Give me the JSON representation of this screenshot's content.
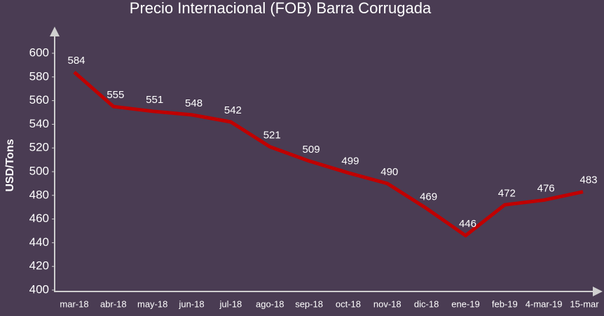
{
  "chart_data": {
    "type": "line",
    "title": "Precio Internacional (FOB) Barra Corrugada",
    "y_label": "USD/Tons",
    "categories": [
      "mar-18",
      "abr-18",
      "may-18",
      "jun-18",
      "jul-18",
      "ago-18",
      "sep-18",
      "oct-18",
      "nov-18",
      "dic-18",
      "ene-19",
      "feb-19",
      "4-mar-19",
      "15-mar"
    ],
    "series": [
      {
        "name": "Precio",
        "color": "#c00000",
        "values": [
          584,
          555,
          551,
          548,
          542,
          521,
          509,
          499,
          490,
          469,
          446,
          472,
          476,
          483
        ]
      }
    ],
    "ylim": [
      400,
      600
    ],
    "yticks": [
      400,
      420,
      440,
      460,
      480,
      500,
      520,
      540,
      560,
      580,
      600
    ]
  }
}
